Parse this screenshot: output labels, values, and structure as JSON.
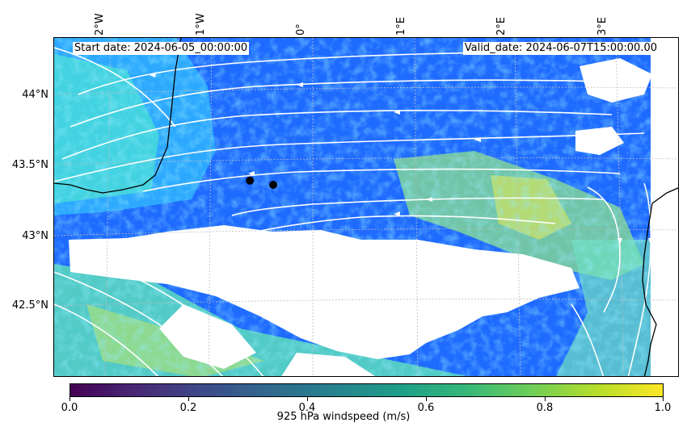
{
  "map": {
    "start_date": "Start date: 2024-06-05_00:00:00",
    "valid_date": "Valid_date: 2024-06-07T15:00:00.00",
    "lon_ticks": [
      "2°W",
      "1°W",
      "0°",
      "1°E",
      "2°E",
      "3°E"
    ],
    "lat_ticks": [
      "44°N",
      "43.5°N",
      "43°N",
      "42.5°N"
    ],
    "markers": [
      {
        "name": "marker-1",
        "lon": -0.62,
        "lat": 43.39
      },
      {
        "name": "marker-2",
        "lon": -0.39,
        "lat": 43.36
      }
    ],
    "field": "925 hPa windspeed",
    "colormap": "viridis",
    "streamline_color": "#ffffff",
    "coastline_color": "#000000",
    "gridlines": "dotted grey"
  },
  "colorbar": {
    "label": "925 hPa windspeed (m/s)",
    "ticks": [
      "0.0",
      "0.2",
      "0.4",
      "0.6",
      "0.8",
      "1.0"
    ],
    "range": [
      0.0,
      1.0
    ],
    "colors": [
      "#440154",
      "#3e4a89",
      "#26828e",
      "#35b779",
      "#b5de2b",
      "#fde725"
    ]
  }
}
